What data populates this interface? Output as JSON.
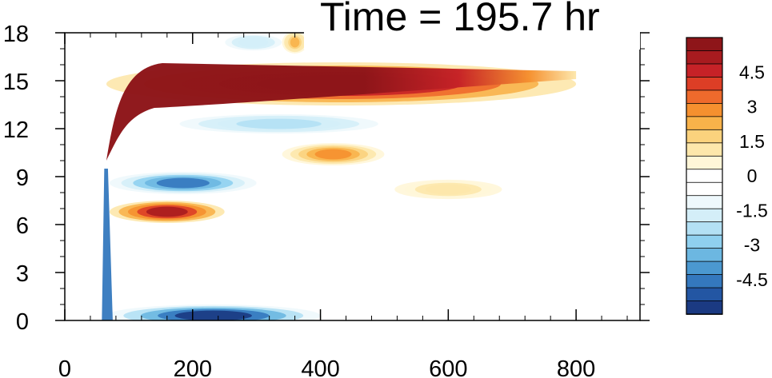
{
  "title": "Time = 195.7 hr",
  "chart_data": {
    "type": "heatmap",
    "title": "Time = 195.7 hr",
    "xlabel": "",
    "ylabel": "",
    "xlim": [
      0,
      900
    ],
    "ylim": [
      0,
      18
    ],
    "x_ticks": [
      "0",
      "200",
      "400",
      "600",
      "800"
    ],
    "y_ticks": [
      "0",
      "3",
      "6",
      "9",
      "12",
      "15",
      "18"
    ],
    "colorbar": {
      "range": [
        -6,
        6
      ],
      "step": 0.5,
      "tick_labels": [
        "4.5",
        "3",
        "1.5",
        "0",
        "-1.5",
        "-3",
        "-4.5"
      ],
      "colors": [
        "#8e1519",
        "#a81b1f",
        "#c62227",
        "#dd3e26",
        "#ee6a2c",
        "#f5902f",
        "#f8b24a",
        "#fbd27d",
        "#fde7ab",
        "#fff6d8",
        "#ffffff",
        "#ffffff",
        "#eef8fc",
        "#d4eef8",
        "#b3e0f4",
        "#8fd0ef",
        "#6cb7e1",
        "#4b98d0",
        "#3478be",
        "#2356a3",
        "#1b3a82"
      ]
    },
    "features": [
      {
        "kind": "band",
        "sign": "positive",
        "x": [
          65,
          800
        ],
        "y_center": 14.8,
        "peak": 6
      },
      {
        "kind": "band",
        "sign": "negative",
        "x": [
          150,
          520
        ],
        "y_center": 12.3,
        "peak": -2.5
      },
      {
        "kind": "blob",
        "sign": "positive",
        "x": [
          340,
          500
        ],
        "y_center": 10.4,
        "peak": 3
      },
      {
        "kind": "blob",
        "sign": "negative",
        "x": [
          70,
          300
        ],
        "y_center": 8.6,
        "peak": -4.5
      },
      {
        "kind": "blob",
        "sign": "positive",
        "x": [
          70,
          250
        ],
        "y_center": 6.8,
        "peak": 5.5
      },
      {
        "kind": "band",
        "sign": "negative",
        "x": [
          65,
          400
        ],
        "y_center": 0.3,
        "peak": -6
      },
      {
        "kind": "streak",
        "sign": "negative",
        "x": [
          58,
          70
        ],
        "y": [
          0,
          9.5
        ],
        "peak": -5
      },
      {
        "kind": "blob",
        "sign": "positive",
        "x": [
          500,
          700
        ],
        "y_center": 8.2,
        "peak": 1.5
      },
      {
        "kind": "blob",
        "sign": "negative",
        "x": [
          230,
          360
        ],
        "y_center": 17.4,
        "peak": -2
      },
      {
        "kind": "blob",
        "sign": "positive",
        "x": [
          340,
          380
        ],
        "y_center": 17.4,
        "peak": 2.5
      }
    ]
  }
}
